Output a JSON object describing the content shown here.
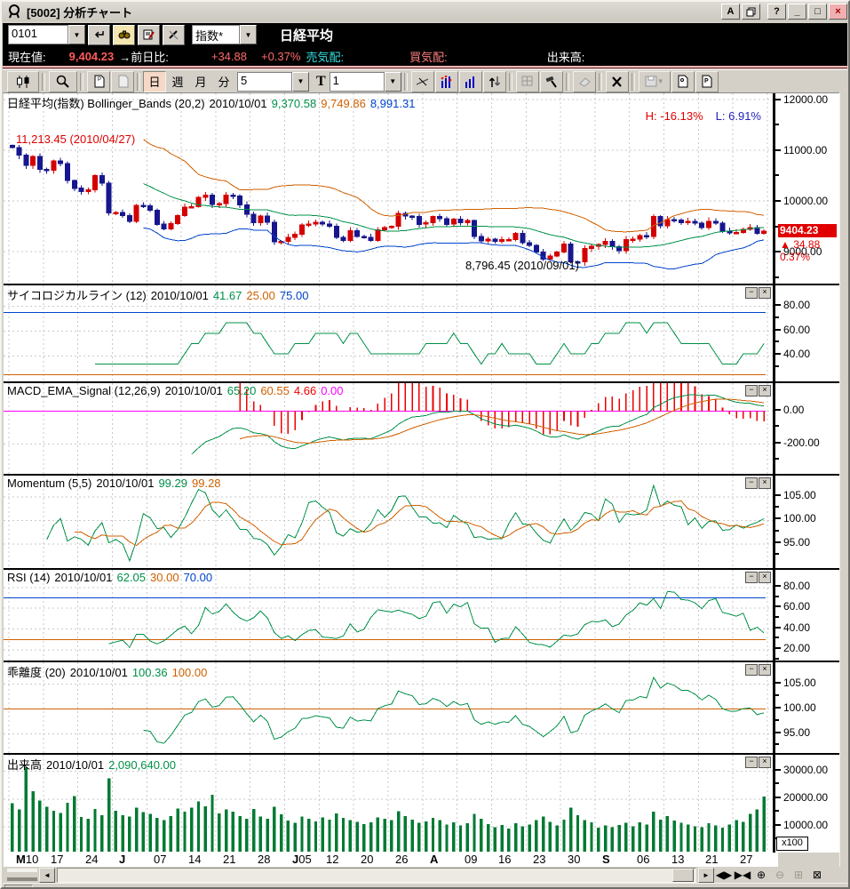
{
  "window": {
    "title": "[5002] 分析チャート",
    "buttons": {
      "annotation": "A",
      "copy_window": "copy",
      "help": "?",
      "minimize": "_",
      "maximize": "□",
      "close": "×"
    }
  },
  "code_bar": {
    "code": "0101",
    "category_select": "指数*",
    "instrument": "日経平均"
  },
  "quote_bar": {
    "current_label": "現在値:",
    "current_value": "9,404.23",
    "change_label": "→前日比:",
    "change_value": "+34.88",
    "change_pct": "+0.37%",
    "ask_label": "売気配:",
    "bid_label": "買気配:",
    "volume_label": "出来高:"
  },
  "chart_toolbar": {
    "period_day": "日",
    "period_week": "週",
    "period_month": "月",
    "period_minute": "分",
    "bars_value": "5",
    "type_label": "T",
    "type_value": "1"
  },
  "price_tag": {
    "price": "9404.23",
    "change": "▲ 34.88",
    "pct": "0.37%"
  },
  "overlays": {
    "high_label": "H: -16.13%",
    "low_label": "L: 6.91%",
    "high_annotation": "11,213.45 (2010/04/27)",
    "low_annotation": "8,796.45 (2010/09/01)",
    "volume_unit": "x100"
  },
  "colors": {
    "up": "#d40000",
    "down": "#16168e",
    "green": "#009048",
    "orange": "#d06000",
    "blue": "#0044cc",
    "red": "#ee0000",
    "magenta": "#ff00ff",
    "vol": "#007a33",
    "grid": "#c9c9c9"
  },
  "panels": [
    {
      "name": "main",
      "title": "日経平均(指数) Bollinger_Bands (20,2)",
      "date": "2010/10/01",
      "readouts": [
        [
          "9,370.58",
          "green"
        ],
        [
          "9,749.86",
          "orange"
        ],
        [
          "8,991.31",
          "blue"
        ]
      ]
    },
    {
      "name": "psych",
      "title": "サイコロジカルライン (12)",
      "date": "2010/10/01",
      "readouts": [
        [
          "41.67",
          "green"
        ],
        [
          "25.00",
          "orange"
        ],
        [
          "75.00",
          "blue"
        ]
      ]
    },
    {
      "name": "macd",
      "title": "MACD_EMA_Signal (12,26,9)",
      "date": "2010/10/01",
      "readouts": [
        [
          "65.20",
          "green"
        ],
        [
          "60.55",
          "orange"
        ],
        [
          "4.66",
          "red"
        ],
        [
          "0.00",
          "magenta"
        ]
      ]
    },
    {
      "name": "momentum",
      "title": "Momentum (5,5)",
      "date": "2010/10/01",
      "readouts": [
        [
          "99.29",
          "green"
        ],
        [
          "99.28",
          "orange"
        ]
      ]
    },
    {
      "name": "rsi",
      "title": "RSI (14)",
      "date": "2010/10/01",
      "readouts": [
        [
          "62.05",
          "green"
        ],
        [
          "30.00",
          "orange"
        ],
        [
          "70.00",
          "blue"
        ]
      ]
    },
    {
      "name": "kairi",
      "title": "乖離度 (20)",
      "date": "2010/10/01",
      "readouts": [
        [
          "100.36",
          "green"
        ],
        [
          "100.00",
          "orange"
        ]
      ]
    },
    {
      "name": "volume",
      "title": "出来高",
      "date": "2010/10/01",
      "readouts": [
        [
          "2,090,640.00",
          "green"
        ]
      ]
    }
  ],
  "chart_data": [
    {
      "name": "main",
      "type": "candlestick",
      "title": "日経平均(指数)",
      "indicator": "Bollinger_Bands (20,2)",
      "date": "2010/10/01",
      "last": 9404.23,
      "period_high": 11213.45,
      "period_high_date": "2010/04/27",
      "period_low": 8796.45,
      "period_low_date": "2010/09/01",
      "ylim": [
        8370,
        12120
      ],
      "ticks": [
        9000,
        10000,
        11000,
        12000
      ],
      "closes": [
        11050,
        10900,
        10700,
        10880,
        10620,
        10600,
        10790,
        10740,
        10400,
        10250,
        10180,
        10220,
        10500,
        10350,
        9760,
        9770,
        9710,
        9600,
        9910,
        9900,
        9820,
        9540,
        9450,
        9550,
        9710,
        9880,
        9890,
        10070,
        10110,
        9930,
        9950,
        10110,
        10100,
        9920,
        9740,
        9570,
        9700,
        9580,
        9190,
        9200,
        9280,
        9340,
        9530,
        9540,
        9580,
        9540,
        9500,
        9280,
        9220,
        9410,
        9300,
        9280,
        9220,
        9430,
        9470,
        9500,
        9750,
        9700,
        9690,
        9540,
        9570,
        9690,
        9650,
        9540,
        9640,
        9570,
        9610,
        9300,
        9210,
        9250,
        9200,
        9240,
        9240,
        9360,
        9180,
        9120,
        8990,
        8850,
        8910,
        8990,
        9150,
        8800,
        8796,
        9060,
        9110,
        9140,
        9200,
        9100,
        9020,
        9240,
        9250,
        9320,
        9300,
        9690,
        9510,
        9630,
        9620,
        9570,
        9600,
        9560,
        9470,
        9600,
        9560,
        9400,
        9370,
        9380,
        9440,
        9470,
        9360,
        9404
      ]
    },
    {
      "name": "psych",
      "type": "line",
      "indicator": "psychological(12)",
      "last": 41.67,
      "ylim": [
        18,
        97
      ],
      "ticks": [
        40,
        60,
        80
      ],
      "hlines": [
        [
          25,
          "orange"
        ],
        [
          75,
          "blue"
        ]
      ]
    },
    {
      "name": "macd",
      "type": "line+hist",
      "indicator": "macd(12,26,9)",
      "last": [
        65.2,
        60.55,
        4.66,
        0.0
      ],
      "ylim": [
        -390,
        170
      ],
      "ticks": [
        -200,
        0
      ],
      "hlines": [
        [
          0,
          "magenta"
        ]
      ]
    },
    {
      "name": "momentum",
      "type": "line",
      "indicator": "momentum(5,5)",
      "last": [
        99.29,
        99.28
      ],
      "ylim": [
        89.5,
        109.5
      ],
      "ticks": [
        95,
        100,
        105
      ],
      "hlines": []
    },
    {
      "name": "rsi",
      "type": "line",
      "indicator": "rsi(14)",
      "last": 62.05,
      "ylim": [
        8,
        97
      ],
      "ticks": [
        20,
        40,
        60,
        80
      ],
      "hlines": [
        [
          30,
          "orange"
        ],
        [
          70,
          "blue"
        ]
      ]
    },
    {
      "name": "kairi",
      "type": "line",
      "indicator": "kairi(20)",
      "last": 100.36,
      "ylim": [
        90.8,
        109.4
      ],
      "ticks": [
        95,
        100,
        105
      ],
      "hlines": [
        [
          100,
          "orange"
        ]
      ]
    },
    {
      "name": "volume",
      "type": "bar",
      "unit": "x100",
      "last": 20906.4,
      "ylim": [
        0,
        36000
      ],
      "ticks": [
        10000,
        20000,
        30000
      ],
      "values": [
        18500,
        16200,
        31500,
        22800,
        19400,
        17200,
        15800,
        14900,
        18600,
        21000,
        13500,
        12800,
        16400,
        14200,
        27500,
        15800,
        14200,
        13600,
        16800,
        15200,
        14600,
        13200,
        12400,
        13800,
        16500,
        15400,
        16800,
        19200,
        17400,
        21500,
        14800,
        16200,
        15400,
        13800,
        12900,
        16400,
        13600,
        12800,
        17200,
        14400,
        12200,
        11400,
        13600,
        12800,
        11900,
        13400,
        12600,
        14800,
        13200,
        12400,
        11800,
        10900,
        11600,
        13400,
        12800,
        12400,
        15600,
        13800,
        12600,
        11400,
        11900,
        13200,
        12400,
        10800,
        11600,
        10400,
        11200,
        14600,
        12800,
        10900,
        9800,
        10600,
        9400,
        11200,
        10200,
        10800,
        12400,
        13600,
        11800,
        10400,
        12600,
        16800,
        14200,
        12400,
        11600,
        9600,
        10400,
        9800,
        10600,
        11400,
        10200,
        11600,
        10800,
        15400,
        12600,
        13800,
        12200,
        11400,
        10800,
        10200,
        9800,
        11200,
        10400,
        9600,
        10800,
        12400,
        11800,
        14600,
        16200,
        20906
      ]
    }
  ],
  "xaxis": {
    "labels": [
      [
        "M",
        "10"
      ],
      [
        "",
        "17"
      ],
      [
        "",
        "24"
      ],
      [
        "J",
        ""
      ],
      [
        "",
        "07"
      ],
      [
        "",
        "14"
      ],
      [
        "",
        "21"
      ],
      [
        "",
        "28"
      ],
      [
        "J",
        "05"
      ],
      [
        "",
        "12"
      ],
      [
        "",
        "20"
      ],
      [
        "",
        "26"
      ],
      [
        "A",
        ""
      ],
      [
        "",
        "09"
      ],
      [
        "",
        "16"
      ],
      [
        "",
        "23"
      ],
      [
        "",
        "30"
      ],
      [
        "S",
        ""
      ],
      [
        "",
        "06"
      ],
      [
        "",
        "13"
      ],
      [
        "",
        "21"
      ],
      [
        "",
        "27"
      ]
    ]
  },
  "panel_buttons": {
    "minimize": "−",
    "close": "×"
  },
  "bottom_bar": {
    "prev_next": "◀▶",
    "collapse": "▶◀",
    "zoom_in": "⊕",
    "zoom_out": "⊖",
    "grid": "⊞",
    "close_box": "⊠",
    "left_arrow": "◄",
    "right_arrow": "►"
  }
}
